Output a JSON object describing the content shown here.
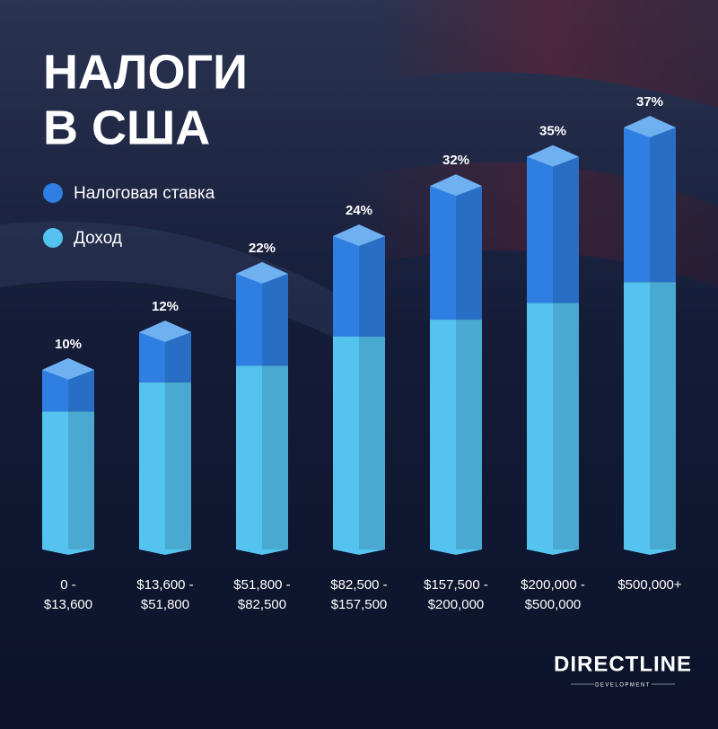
{
  "chart_data": {
    "type": "stacked-bar",
    "title": [
      "НАЛОГИ",
      "В США"
    ],
    "categories": [
      [
        "0 -",
        "$13,600"
      ],
      [
        "$13,600 -",
        "$51,800"
      ],
      [
        "$51,800 -",
        "$82,500"
      ],
      [
        "$82,500 -",
        "$157,500"
      ],
      [
        "$157,500 -",
        "$200,000"
      ],
      [
        "$200,000 -",
        "$500,000"
      ],
      [
        "$500,000+"
      ]
    ],
    "series": [
      {
        "name": "Доход",
        "color": "#55c3ef",
        "values": [
          33,
          40,
          44,
          51,
          55,
          59,
          64
        ]
      },
      {
        "name": "Налоговая ставка",
        "color": "#2f7fe2",
        "values": [
          10,
          12,
          22,
          24,
          32,
          35,
          37
        ],
        "value_labels": [
          "10%",
          "12%",
          "22%",
          "24%",
          "32%",
          "35%",
          "37%"
        ]
      }
    ]
  },
  "logo": {
    "name": "DIRECTLINE",
    "tagline": "DEVELOPMENT"
  }
}
